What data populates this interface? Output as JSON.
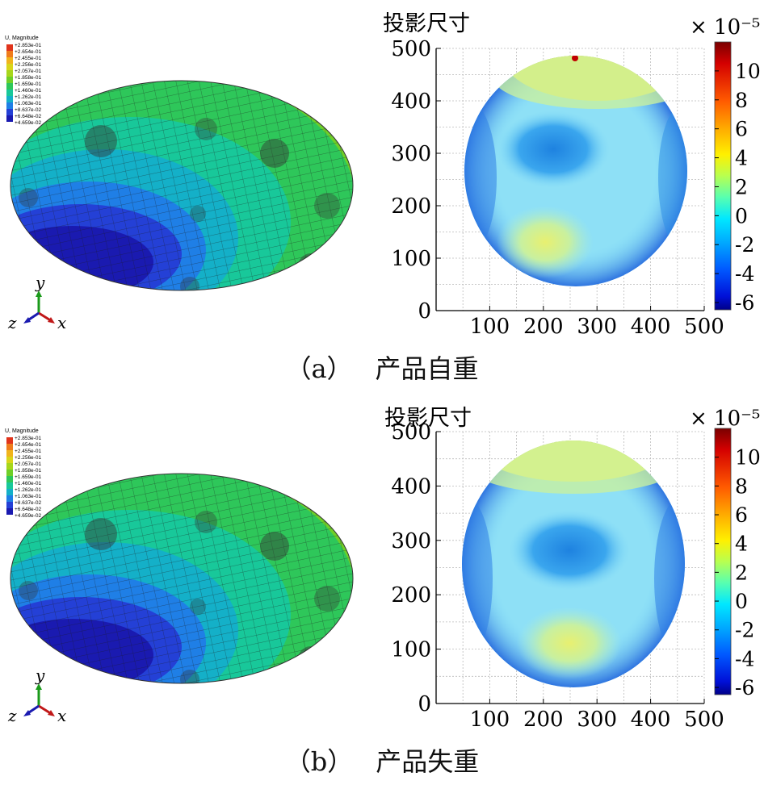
{
  "colors": {
    "fea": [
      "#1a1ab0",
      "#2440d6",
      "#1f7fe6",
      "#14b0c8",
      "#18c89a",
      "#2ec75a",
      "#6fcf28",
      "#a7d61c",
      "#d9d51a",
      "#f0b41c",
      "#ef7c1c",
      "#e0341c"
    ],
    "colorbar": [
      "#7a0000",
      "#d40000",
      "#ff5a00",
      "#ffb000",
      "#fff000",
      "#b8ff50",
      "#58ffb0",
      "#00e8ff",
      "#00a8ff",
      "#0058ff",
      "#0010d8",
      "#000088"
    ]
  },
  "panels": [
    {
      "id": "a",
      "caption_label": "（a）",
      "caption_text": "产品自重",
      "fea": {
        "legend_title": "U, Magnitude",
        "legend_values": [
          "+2.853e-01",
          "+2.654e-01",
          "+2.455e-01",
          "+2.256e-01",
          "+2.057e-01",
          "+1.858e-01",
          "+1.659e-01",
          "+1.460e-01",
          "+1.262e-01",
          "+1.063e-01",
          "+8.637e-02",
          "+6.648e-02",
          "+4.659e-02"
        ],
        "axis_y": "y",
        "axis_z": "z",
        "axis_x": "x"
      },
      "chart_data": {
        "type": "heatmap",
        "title": "投影尺寸",
        "x_ticks": [
          "100",
          "200",
          "300",
          "400",
          "500"
        ],
        "y_ticks": [
          "0",
          "100",
          "200",
          "300",
          "400",
          "500"
        ],
        "xlim": [
          0,
          500
        ],
        "ylim": [
          0,
          500
        ],
        "colorbar_exponent": "× 10⁻⁵",
        "colorbar_ticks": [
          "10",
          "8",
          "6",
          "4",
          "2",
          "0",
          "-2",
          "-4",
          "-6"
        ],
        "colorbar_range": [
          -6.5,
          12
        ],
        "grid": true
      }
    },
    {
      "id": "b",
      "caption_label": "（b）",
      "caption_text": "产品失重",
      "fea": {
        "legend_title": "U, Magnitude",
        "legend_values": [
          "+2.853e-01",
          "+2.654e-01",
          "+2.455e-01",
          "+2.256e-01",
          "+2.057e-01",
          "+1.858e-01",
          "+1.659e-01",
          "+1.460e-01",
          "+1.262e-01",
          "+1.063e-01",
          "+8.637e-02",
          "+6.648e-02",
          "+4.659e-02"
        ],
        "axis_y": "y",
        "axis_z": "z",
        "axis_x": "x"
      },
      "chart_data": {
        "type": "heatmap",
        "title": "投影尺寸",
        "x_ticks": [
          "100",
          "200",
          "300",
          "400",
          "500"
        ],
        "y_ticks": [
          "0",
          "100",
          "200",
          "300",
          "400",
          "500"
        ],
        "xlim": [
          0,
          500
        ],
        "ylim": [
          0,
          500
        ],
        "colorbar_exponent": "× 10⁻⁵",
        "colorbar_ticks": [
          "10",
          "8",
          "6",
          "4",
          "2",
          "0",
          "-2",
          "-4",
          "-6"
        ],
        "colorbar_range": [
          -6.5,
          12
        ],
        "grid": true
      }
    }
  ]
}
